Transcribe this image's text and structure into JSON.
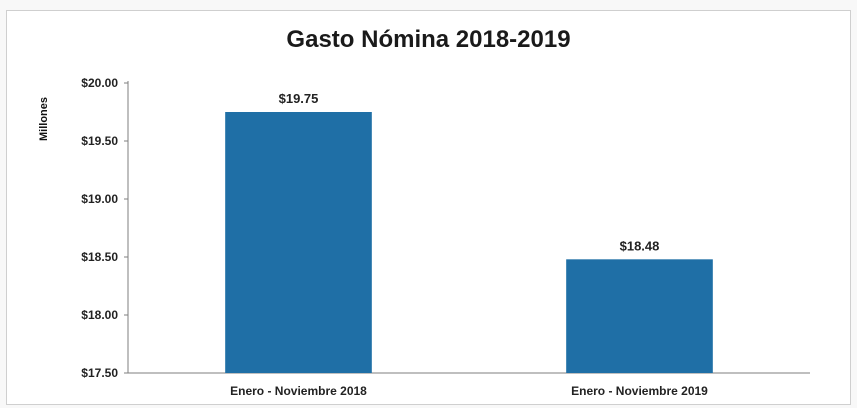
{
  "chart_data": {
    "type": "bar",
    "title": "Gasto Nómina 2018-2019",
    "ylabel": "Millones",
    "xlabel": "",
    "categories": [
      "Enero - Noviembre 2018",
      "Enero - Noviembre 2019"
    ],
    "values": [
      19.75,
      18.48
    ],
    "data_labels": [
      "$19.75",
      "$18.48"
    ],
    "ylim": [
      17.5,
      20.0
    ],
    "yticks": [
      17.5,
      18.0,
      18.5,
      19.0,
      19.5,
      20.0
    ],
    "ytick_labels": [
      "$17.50",
      "$18.00",
      "$18.50",
      "$19.00",
      "$19.50",
      "$20.00"
    ],
    "grid": false,
    "legend": "none",
    "bar_color": "#1f6fa6"
  }
}
